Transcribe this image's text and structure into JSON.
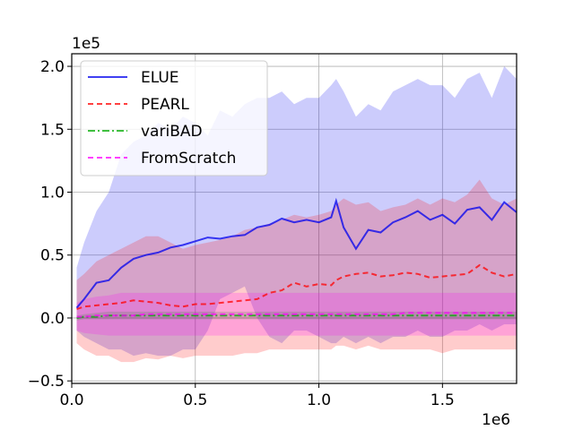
{
  "chart_data": {
    "type": "line",
    "title": "",
    "xlabel": "",
    "ylabel": "",
    "x_offset_label": "1e6",
    "y_offset_label": "1e5",
    "xlim": [
      0.0,
      1.8
    ],
    "ylim": [
      -0.52,
      2.1
    ],
    "xticks": [
      0.0,
      0.5,
      1.0,
      1.5
    ],
    "xtick_labels": [
      "0.0",
      "0.5",
      "1.0",
      "1.5"
    ],
    "yticks": [
      -0.5,
      0.0,
      0.5,
      1.0,
      1.5,
      2.0
    ],
    "ytick_labels": [
      "−0.5",
      "0.0",
      "0.5",
      "1.0",
      "1.5",
      "2.0"
    ],
    "grid": true,
    "legend_position": "top-left",
    "x": [
      0.02,
      0.05,
      0.1,
      0.15,
      0.2,
      0.25,
      0.3,
      0.35,
      0.4,
      0.45,
      0.5,
      0.55,
      0.6,
      0.65,
      0.7,
      0.75,
      0.8,
      0.85,
      0.9,
      0.95,
      1.0,
      1.05,
      1.07,
      1.1,
      1.15,
      1.2,
      1.25,
      1.3,
      1.35,
      1.4,
      1.45,
      1.5,
      1.55,
      1.6,
      1.65,
      1.7,
      1.75,
      1.8
    ],
    "series": [
      {
        "name": "ELUE",
        "color": "#0000ee",
        "style": "solid",
        "values": [
          0.08,
          0.15,
          0.28,
          0.3,
          0.4,
          0.47,
          0.5,
          0.52,
          0.56,
          0.58,
          0.61,
          0.64,
          0.63,
          0.65,
          0.66,
          0.72,
          0.74,
          0.79,
          0.76,
          0.78,
          0.76,
          0.8,
          0.93,
          0.72,
          0.55,
          0.7,
          0.68,
          0.76,
          0.8,
          0.85,
          0.78,
          0.82,
          0.75,
          0.86,
          0.88,
          0.78,
          0.92,
          0.84
        ],
        "band_upper": [
          0.4,
          0.6,
          0.85,
          1.0,
          1.3,
          1.4,
          1.45,
          1.55,
          1.5,
          1.6,
          1.55,
          1.45,
          1.65,
          1.6,
          1.7,
          1.75,
          1.75,
          1.8,
          1.7,
          1.75,
          1.75,
          1.85,
          1.9,
          1.8,
          1.6,
          1.7,
          1.65,
          1.8,
          1.85,
          1.9,
          1.85,
          1.85,
          1.75,
          1.9,
          1.95,
          1.75,
          2.0,
          1.9
        ],
        "band_lower": [
          -0.1,
          -0.15,
          -0.2,
          -0.25,
          -0.25,
          -0.3,
          -0.28,
          -0.3,
          -0.3,
          -0.25,
          -0.25,
          -0.1,
          0.15,
          0.2,
          0.25,
          0.0,
          -0.15,
          -0.2,
          -0.1,
          -0.1,
          -0.15,
          -0.2,
          -0.2,
          -0.15,
          -0.2,
          -0.15,
          -0.2,
          -0.15,
          -0.15,
          -0.1,
          -0.15,
          -0.15,
          -0.1,
          -0.1,
          -0.05,
          -0.1,
          -0.05,
          -0.05
        ]
      },
      {
        "name": "PEARL",
        "color": "#ff0000",
        "style": "dashed",
        "values": [
          0.07,
          0.09,
          0.1,
          0.11,
          0.12,
          0.14,
          0.13,
          0.12,
          0.1,
          0.09,
          0.11,
          0.11,
          0.12,
          0.13,
          0.14,
          0.15,
          0.2,
          0.22,
          0.28,
          0.25,
          0.27,
          0.26,
          0.3,
          0.33,
          0.35,
          0.36,
          0.33,
          0.34,
          0.36,
          0.35,
          0.32,
          0.33,
          0.34,
          0.35,
          0.42,
          0.36,
          0.33,
          0.35
        ],
        "band_upper": [
          0.3,
          0.35,
          0.45,
          0.5,
          0.55,
          0.6,
          0.65,
          0.65,
          0.6,
          0.55,
          0.58,
          0.6,
          0.62,
          0.65,
          0.7,
          0.72,
          0.75,
          0.78,
          0.82,
          0.8,
          0.82,
          0.85,
          0.9,
          0.95,
          0.9,
          0.92,
          0.85,
          0.88,
          0.9,
          0.95,
          0.9,
          0.95,
          0.92,
          0.98,
          1.1,
          0.95,
          0.9,
          0.95
        ],
        "band_lower": [
          -0.2,
          -0.25,
          -0.3,
          -0.3,
          -0.35,
          -0.35,
          -0.32,
          -0.33,
          -0.3,
          -0.32,
          -0.3,
          -0.3,
          -0.3,
          -0.3,
          -0.28,
          -0.28,
          -0.25,
          -0.25,
          -0.25,
          -0.25,
          -0.25,
          -0.25,
          -0.22,
          -0.22,
          -0.25,
          -0.22,
          -0.25,
          -0.25,
          -0.25,
          -0.25,
          -0.25,
          -0.28,
          -0.25,
          -0.25,
          -0.25,
          -0.25,
          -0.25,
          -0.25
        ]
      },
      {
        "name": "variBAD",
        "color": "#00aa00",
        "style": "dashdot",
        "values": [
          0.0,
          0.01,
          0.01,
          0.02,
          0.02,
          0.02,
          0.02,
          0.02,
          0.02,
          0.02,
          0.02,
          0.02,
          0.02,
          0.02,
          0.02,
          0.02,
          0.02,
          0.02,
          0.02,
          0.02,
          0.02,
          0.02,
          0.02,
          0.02,
          0.02,
          0.02,
          0.02,
          0.02,
          0.02,
          0.02,
          0.02,
          0.02,
          0.02,
          0.02,
          0.02,
          0.02,
          0.02,
          0.02
        ],
        "band_upper": [
          0.02,
          0.03,
          0.04,
          0.05,
          0.05,
          0.05,
          0.05,
          0.05,
          0.05,
          0.05,
          0.05,
          0.05,
          0.05,
          0.05,
          0.05,
          0.05,
          0.05,
          0.05,
          0.05,
          0.05,
          0.05,
          0.05,
          0.05,
          0.05,
          0.05,
          0.05,
          0.05,
          0.05,
          0.05,
          0.05,
          0.05,
          0.05,
          0.05,
          0.05,
          0.05,
          0.05,
          0.05,
          0.05
        ],
        "band_lower": [
          -0.02,
          -0.01,
          -0.01,
          -0.01,
          -0.01,
          -0.01,
          -0.01,
          -0.01,
          -0.01,
          -0.01,
          -0.01,
          -0.01,
          -0.01,
          -0.01,
          -0.01,
          -0.01,
          -0.01,
          -0.01,
          -0.01,
          -0.01,
          -0.01,
          -0.01,
          -0.01,
          -0.01,
          -0.01,
          -0.01,
          -0.01,
          -0.01,
          -0.01,
          -0.01,
          -0.01,
          -0.01,
          -0.01,
          -0.01,
          -0.01,
          -0.01,
          -0.01,
          -0.01
        ]
      },
      {
        "name": "FromScratch",
        "color": "#ff00ff",
        "style": "dashed",
        "values": [
          0.01,
          0.01,
          0.02,
          0.02,
          0.02,
          0.02,
          0.03,
          0.03,
          0.03,
          0.03,
          0.03,
          0.03,
          0.03,
          0.03,
          0.03,
          0.03,
          0.03,
          0.03,
          0.03,
          0.03,
          0.03,
          0.03,
          0.03,
          0.03,
          0.03,
          0.03,
          0.03,
          0.03,
          0.04,
          0.04,
          0.04,
          0.04,
          0.04,
          0.04,
          0.04,
          0.04,
          0.04,
          0.04
        ],
        "band_upper": [
          0.12,
          0.15,
          0.17,
          0.18,
          0.2,
          0.2,
          0.2,
          0.2,
          0.2,
          0.2,
          0.2,
          0.2,
          0.2,
          0.2,
          0.2,
          0.2,
          0.2,
          0.2,
          0.2,
          0.2,
          0.2,
          0.2,
          0.2,
          0.2,
          0.2,
          0.2,
          0.2,
          0.2,
          0.2,
          0.2,
          0.2,
          0.2,
          0.2,
          0.2,
          0.2,
          0.2,
          0.2,
          0.2
        ],
        "band_lower": [
          -0.1,
          -0.12,
          -0.13,
          -0.14,
          -0.14,
          -0.14,
          -0.14,
          -0.14,
          -0.14,
          -0.14,
          -0.14,
          -0.14,
          -0.14,
          -0.14,
          -0.14,
          -0.14,
          -0.14,
          -0.14,
          -0.14,
          -0.14,
          -0.14,
          -0.14,
          -0.14,
          -0.14,
          -0.14,
          -0.14,
          -0.14,
          -0.14,
          -0.14,
          -0.14,
          -0.14,
          -0.14,
          -0.14,
          -0.14,
          -0.14,
          -0.14,
          -0.14,
          -0.14
        ]
      }
    ]
  }
}
